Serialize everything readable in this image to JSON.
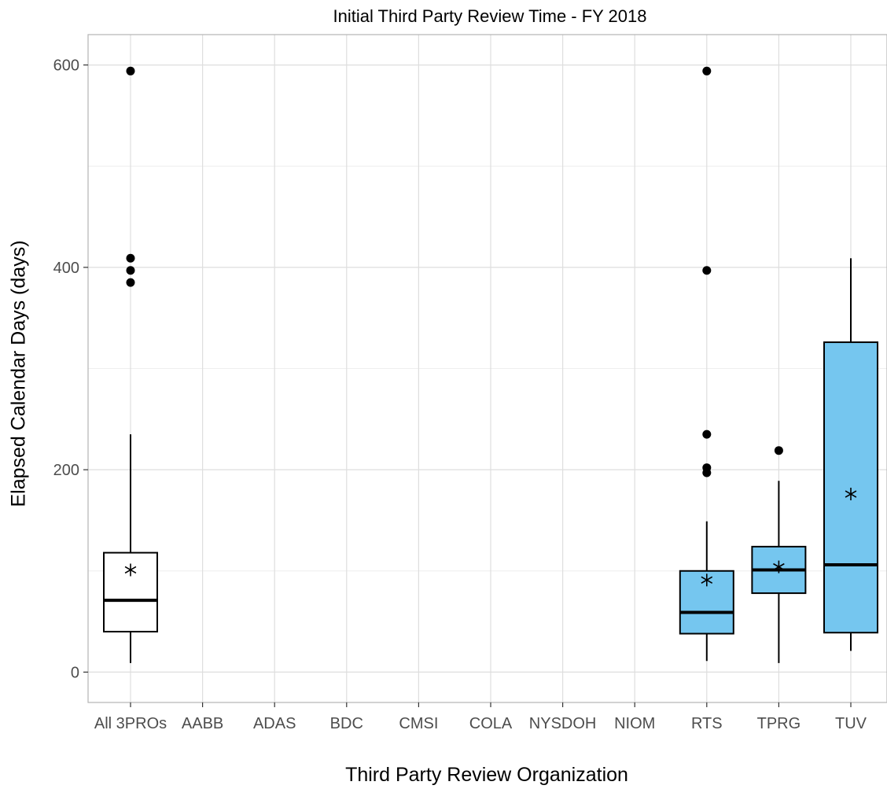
{
  "chart_data": {
    "type": "box",
    "title": "Initial Third Party Review Time - FY 2018",
    "xlabel": "Third Party Review Organization",
    "ylabel": "Elapsed Calendar Days (days)",
    "ylim": [
      -30,
      630
    ],
    "yticks": [
      0,
      200,
      400,
      600
    ],
    "grid": true,
    "categories": [
      "All 3PROs",
      "AABB",
      "ADAS",
      "BDC",
      "CMSI",
      "COLA",
      "NYSDOH",
      "NIOM",
      "RTS",
      "TPRG",
      "TUV"
    ],
    "boxes": [
      {
        "category": "All 3PROs",
        "whisker_low": 9,
        "q1": 40,
        "median": 71,
        "q3": 118,
        "whisker_high": 235,
        "mean": 101,
        "outliers": [
          385,
          397,
          409,
          594
        ],
        "fill": "#ffffff"
      },
      {
        "category": "RTS",
        "whisker_low": 11,
        "q1": 38,
        "median": 59,
        "q3": 100,
        "whisker_high": 149,
        "mean": 91,
        "outliers": [
          197,
          202,
          235,
          397,
          594
        ],
        "fill": "#75c6ef"
      },
      {
        "category": "TPRG",
        "whisker_low": 9,
        "q1": 78,
        "median": 101,
        "q3": 124,
        "whisker_high": 189,
        "mean": 104,
        "outliers": [
          219
        ],
        "fill": "#75c6ef"
      },
      {
        "category": "TUV",
        "whisker_low": 21,
        "q1": 39,
        "median": 106,
        "q3": 326,
        "whisker_high": 409,
        "mean": 176,
        "outliers": [],
        "fill": "#75c6ef"
      }
    ]
  }
}
